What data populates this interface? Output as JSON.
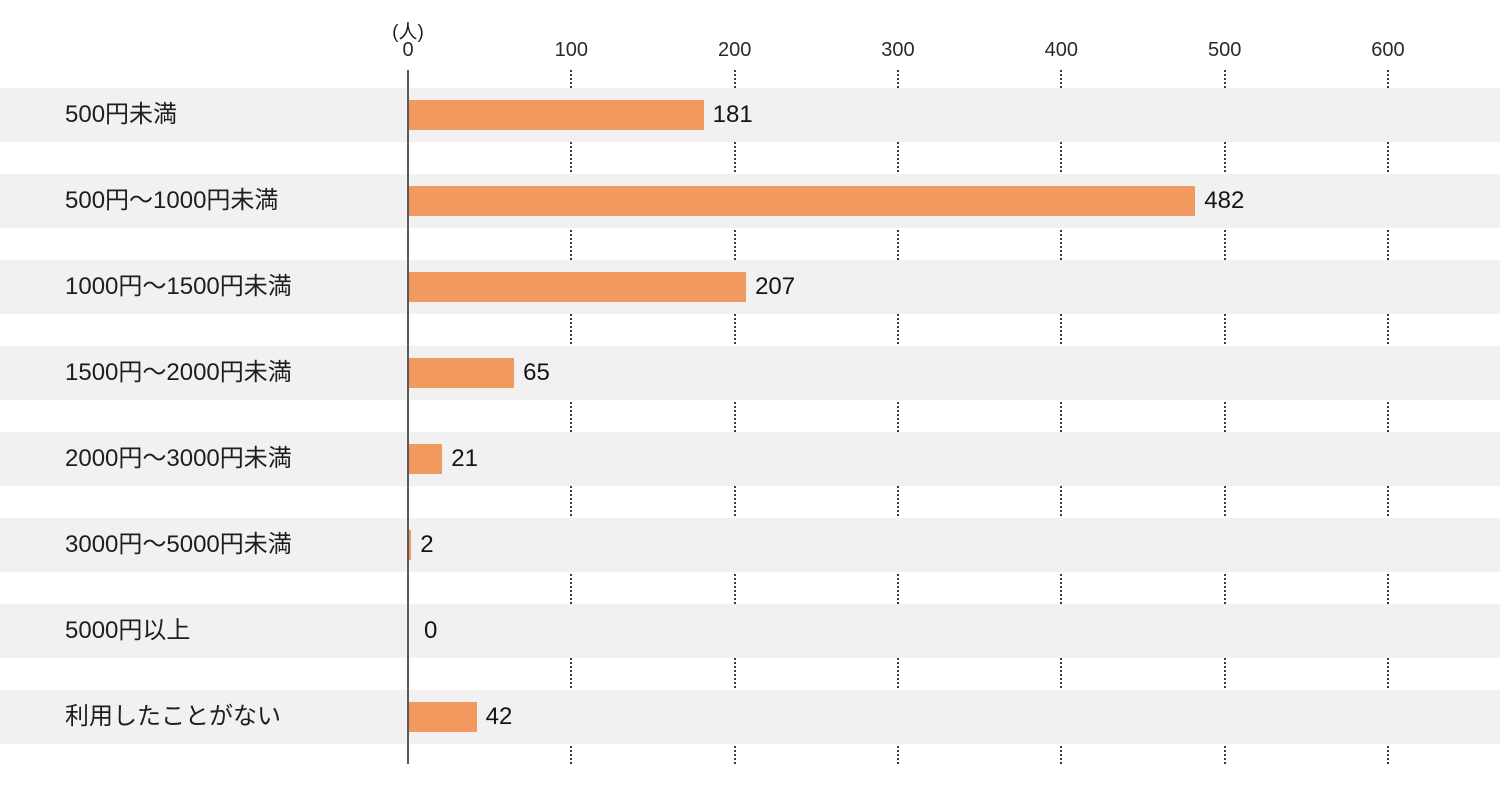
{
  "chart_data": {
    "type": "bar",
    "orientation": "horizontal",
    "title": "",
    "unit_label": "(人)",
    "categories": [
      "500円未満",
      "500円〜1000円未満",
      "1000円〜1500円未満",
      "1500円〜2000円未満",
      "2000円〜3000円未満",
      "3000円〜5000円未満",
      "5000円以上",
      "利用したことがない"
    ],
    "values": [
      181,
      482,
      207,
      65,
      21,
      2,
      0,
      42
    ],
    "x_ticks": [
      0,
      100,
      200,
      300,
      400,
      500,
      600
    ],
    "xlim": [
      0,
      668
    ],
    "xlabel": "",
    "ylabel": "",
    "legend": "none",
    "grid": "dotted vertical lines at ticks, visible only between row bands",
    "colors": {
      "bar": "#F2995F",
      "row_band": "#F1F1F1",
      "grid_line": "#3C3C3C",
      "axis_line": "#5A5A5A",
      "text": "#1E1E1E"
    }
  }
}
